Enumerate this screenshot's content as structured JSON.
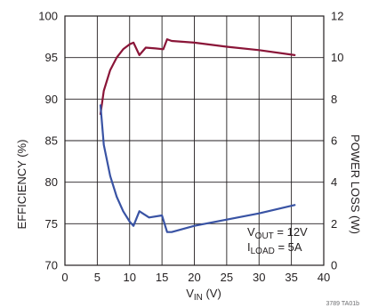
{
  "chart_data": {
    "type": "line",
    "xlabel": "V_IN (V)",
    "xlabel_main": "V",
    "xlabel_sub": "IN",
    "xlabel_unit": " (V)",
    "ylabel": "EFFICIENCY (%)",
    "y2label": "POWER LOSS (W)",
    "xlim": [
      0,
      40
    ],
    "ylim": [
      70,
      100
    ],
    "y2lim": [
      0,
      12
    ],
    "xticks": [
      "0",
      "5",
      "10",
      "15",
      "20",
      "25",
      "30",
      "35",
      "40"
    ],
    "yticks": [
      "70",
      "75",
      "80",
      "85",
      "90",
      "95",
      "100"
    ],
    "y2ticks": [
      "0",
      "2",
      "4",
      "6",
      "8",
      "10",
      "12"
    ],
    "grid": true,
    "colors": {
      "efficiency": "#8a1538",
      "power_loss": "#3953a4"
    },
    "series": [
      {
        "axis": "left",
        "x": [
          5.5,
          6,
          7,
          8,
          9,
          10,
          10.6,
          11.5,
          12.5,
          14,
          15.2,
          15.8,
          16.5,
          20,
          25,
          30,
          35.5
        ],
        "y": [
          88.2,
          91.0,
          93.5,
          95.0,
          96.0,
          96.6,
          96.8,
          95.3,
          96.2,
          96.1,
          96.0,
          97.2,
          97.0,
          96.8,
          96.3,
          95.9,
          95.3
        ]
      },
      {
        "axis": "right",
        "x": [
          5.5,
          6,
          7,
          8,
          9,
          10,
          10.6,
          11.5,
          13,
          15,
          15.8,
          16.5,
          20,
          25,
          30,
          35.5
        ],
        "y": [
          7.7,
          5.8,
          4.3,
          3.3,
          2.6,
          2.1,
          1.9,
          2.6,
          2.3,
          2.4,
          1.6,
          1.6,
          1.9,
          2.2,
          2.5,
          2.9
        ]
      }
    ],
    "annotations": {
      "vout_main": "V",
      "vout_sub": "OUT",
      "vout_value": " = 12V",
      "iload_main": "I",
      "iload_sub": "LOAD",
      "iload_value": " = 5A"
    },
    "figure_code": "3789 TA01b"
  }
}
